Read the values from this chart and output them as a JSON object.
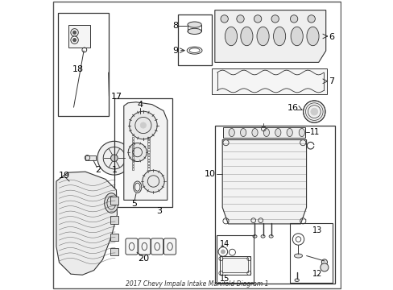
{
  "title": "2017 Chevy Impala Intake Manifold Diagram 1",
  "bg_color": "#ffffff",
  "line_color": "#333333",
  "text_color": "#000000",
  "font_size": 8
}
